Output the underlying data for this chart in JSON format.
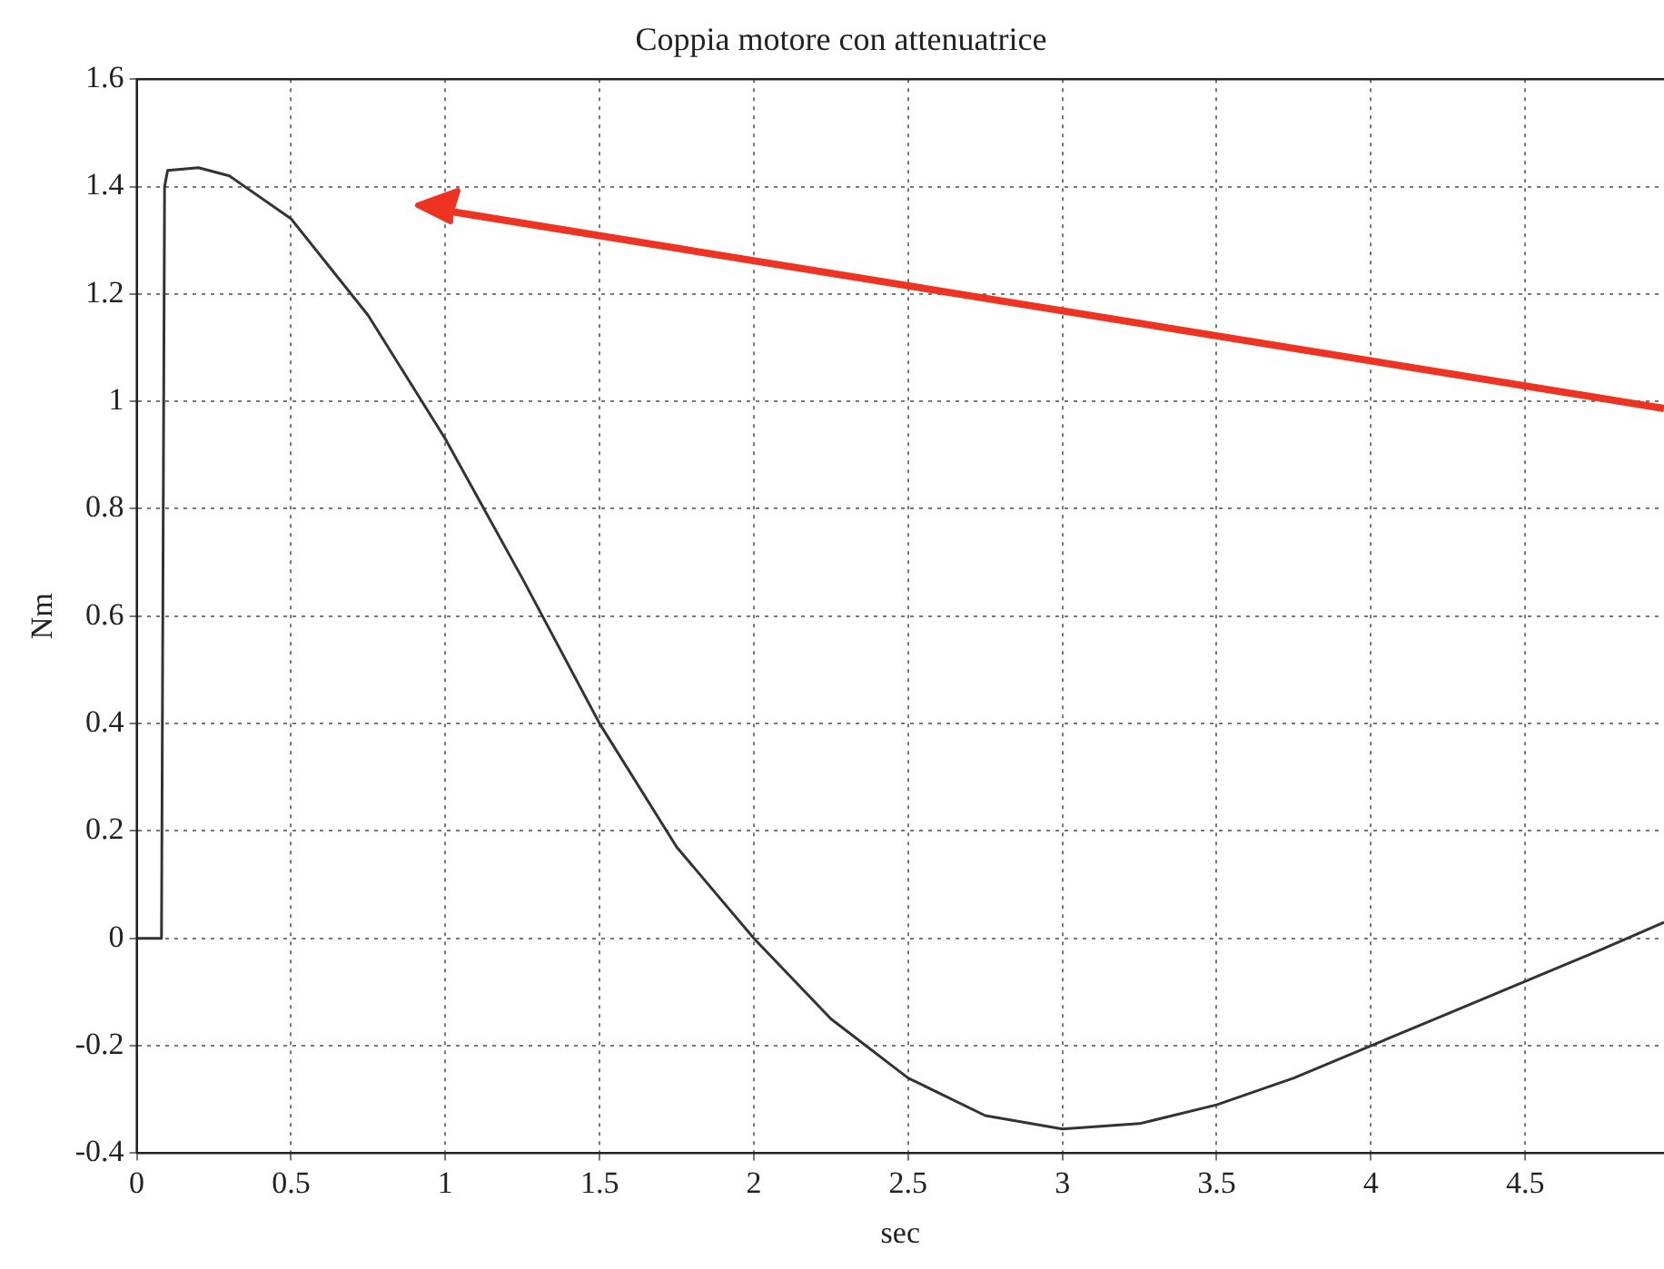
{
  "chart_data": {
    "type": "line",
    "title": "Coppia motore con attenuatrice",
    "xlabel": "sec",
    "ylabel": "Nm",
    "xlim": [
      0,
      4.95
    ],
    "xticks": [
      0,
      0.5,
      1,
      1.5,
      2,
      2.5,
      3,
      3.5,
      4,
      4.5
    ],
    "ylim": [
      -0.4,
      1.6
    ],
    "yticks": [
      -0.4,
      -0.2,
      0,
      0.2,
      0.4,
      0.6,
      0.8,
      1,
      1.2,
      1.4,
      1.6
    ],
    "grid": true,
    "legend": false,
    "line_style": "solid",
    "marker": "none",
    "series": [
      {
        "color": "#333333",
        "x": [
          0,
          0.08,
          0.09,
          0.1,
          0.2,
          0.3,
          0.5,
          0.75,
          1.0,
          1.25,
          1.5,
          1.75,
          2.0,
          2.25,
          2.5,
          2.75,
          3.0,
          3.25,
          3.5,
          3.75,
          4.0,
          4.25,
          4.5,
          4.75,
          4.95
        ],
        "values": [
          0,
          0,
          1.4,
          1.43,
          1.435,
          1.42,
          1.34,
          1.16,
          0.93,
          0.67,
          0.4,
          0.17,
          0,
          -0.15,
          -0.26,
          -0.33,
          -0.355,
          -0.345,
          -0.31,
          -0.26,
          -0.2,
          -0.14,
          -0.08,
          -0.02,
          0.03
        ]
      }
    ]
  }
}
